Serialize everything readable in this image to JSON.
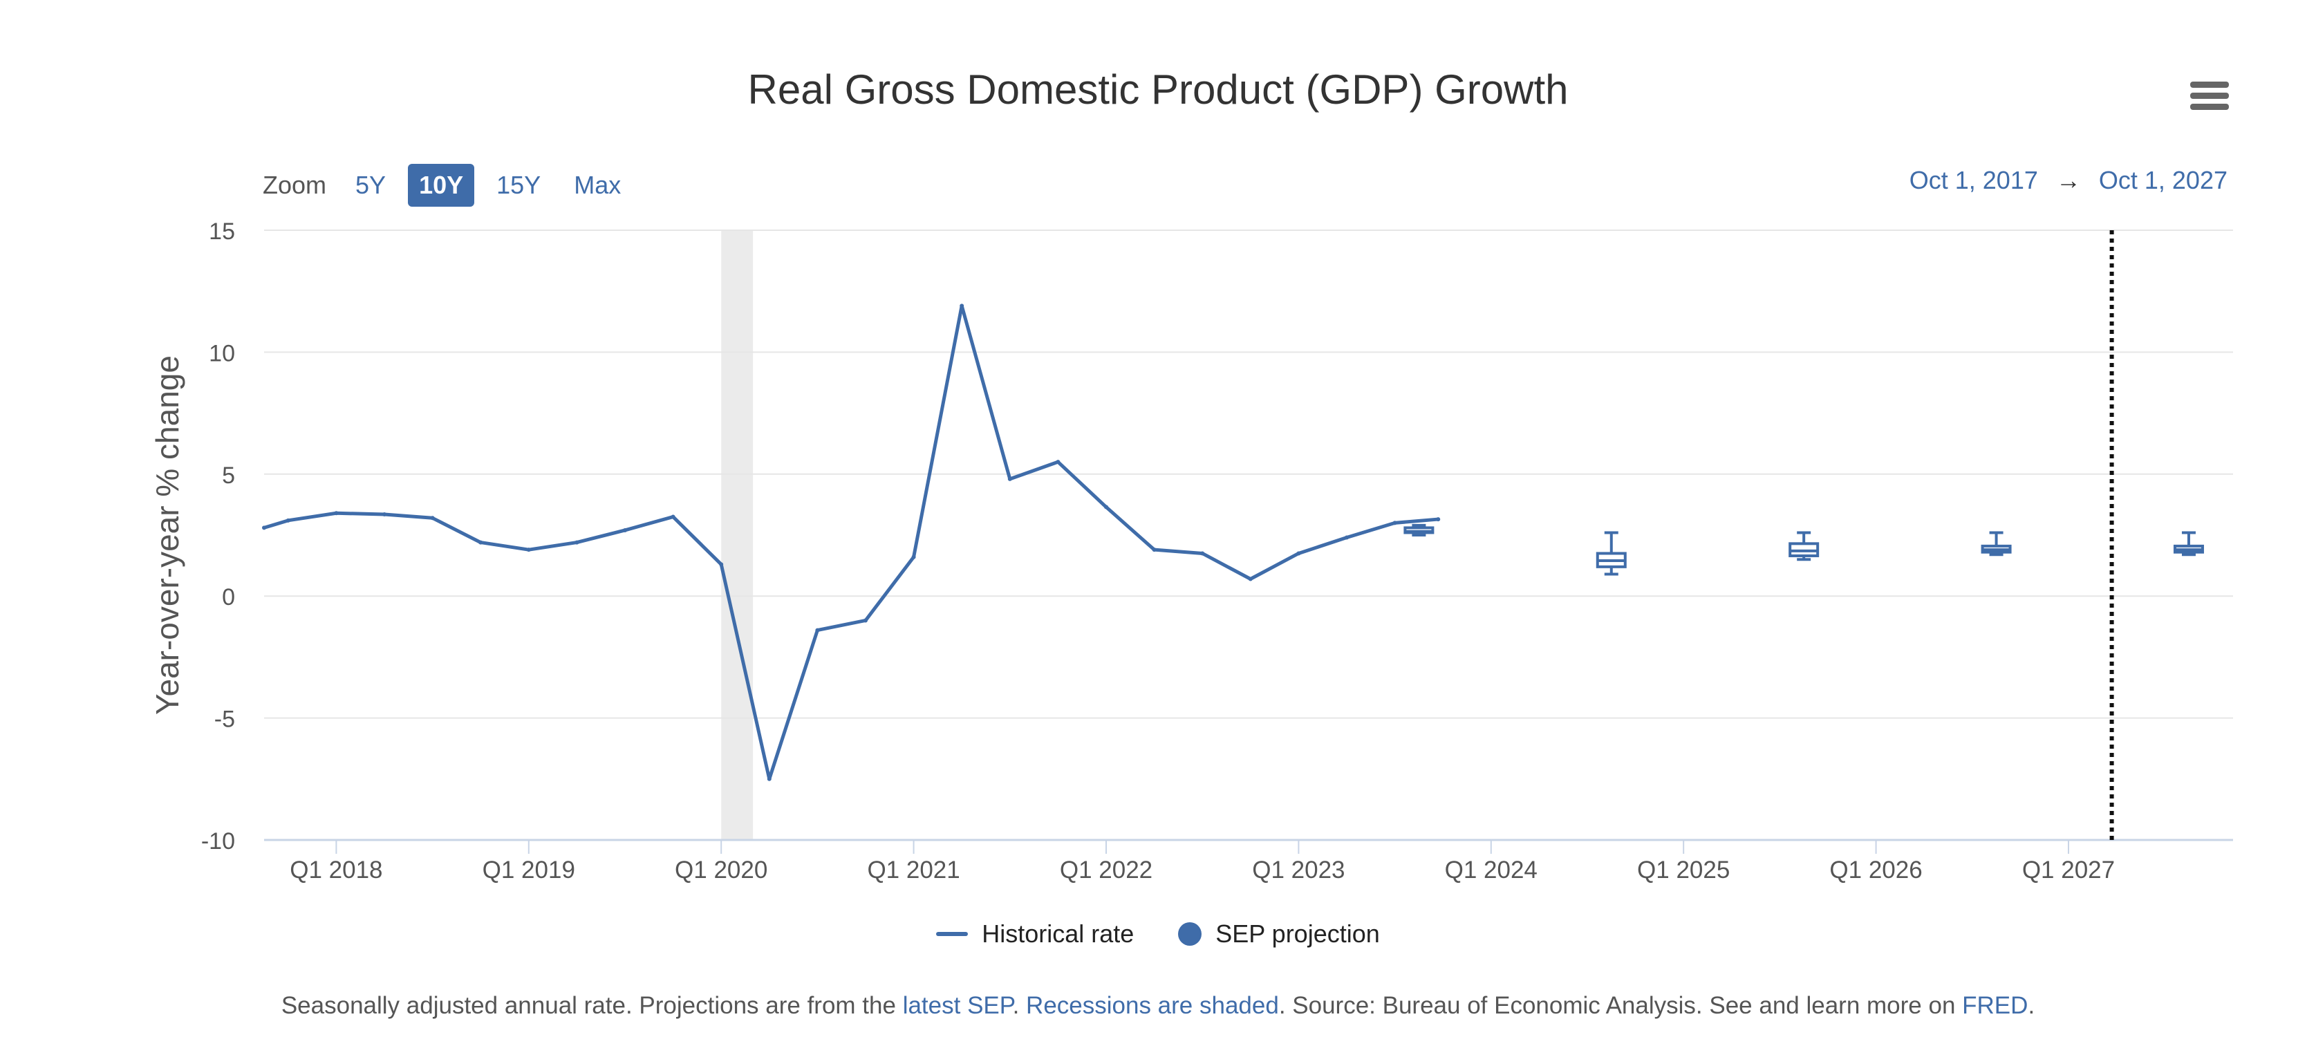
{
  "chart_data": {
    "type": "line",
    "title": "Real Gross Domestic Product (GDP) Growth",
    "ylabel": "Year-over-year % change",
    "xlabel": "",
    "ylim": [
      -10,
      15
    ],
    "yticks": [
      15,
      10,
      5,
      0,
      -5,
      -10
    ],
    "xlim": [
      2017.75,
      2027.98
    ],
    "xticks": [
      {
        "x": 2018.125,
        "label": "Q1 2018"
      },
      {
        "x": 2019.125,
        "label": "Q1 2019"
      },
      {
        "x": 2020.125,
        "label": "Q1 2020"
      },
      {
        "x": 2021.125,
        "label": "Q1 2021"
      },
      {
        "x": 2022.125,
        "label": "Q1 2022"
      },
      {
        "x": 2023.125,
        "label": "Q1 2023"
      },
      {
        "x": 2024.125,
        "label": "Q1 2024"
      },
      {
        "x": 2025.125,
        "label": "Q1 2025"
      },
      {
        "x": 2026.125,
        "label": "Q1 2026"
      },
      {
        "x": 2027.125,
        "label": "Q1 2027"
      }
    ],
    "grid": true,
    "recession": [
      2020.125,
      2020.29
    ],
    "vline_x": 2027.35,
    "series": [
      {
        "name": "Historical rate",
        "x": [
          2017.75,
          2017.875,
          2018.125,
          2018.375,
          2018.625,
          2018.875,
          2019.125,
          2019.375,
          2019.625,
          2019.875,
          2020.125,
          2020.375,
          2020.625,
          2020.875,
          2021.125,
          2021.375,
          2021.625,
          2021.875,
          2022.125,
          2022.375,
          2022.625,
          2022.875,
          2023.125,
          2023.375,
          2023.625,
          2023.85
        ],
        "values": [
          2.8,
          3.1,
          3.4,
          3.35,
          3.2,
          2.2,
          1.9,
          2.2,
          2.7,
          3.25,
          1.3,
          -7.5,
          -1.4,
          -1.0,
          1.6,
          11.9,
          4.8,
          5.5,
          3.65,
          1.9,
          1.75,
          0.7,
          1.75,
          2.4,
          3.0,
          3.15
        ]
      },
      {
        "name": "SEP projection",
        "boxes": [
          {
            "x": 2023.75,
            "min": 2.5,
            "q1": 2.6,
            "median": 2.65,
            "q3": 2.8,
            "max": 2.9
          },
          {
            "x": 2024.75,
            "min": 0.9,
            "q1": 1.2,
            "median": 1.45,
            "q3": 1.75,
            "max": 2.6
          },
          {
            "x": 2025.75,
            "min": 1.5,
            "q1": 1.65,
            "median": 1.85,
            "q3": 2.15,
            "max": 2.6
          },
          {
            "x": 2026.75,
            "min": 1.7,
            "q1": 1.8,
            "median": 1.9,
            "q3": 2.05,
            "max": 2.6
          },
          {
            "x": 2027.75,
            "min": 1.7,
            "q1": 1.8,
            "median": 1.9,
            "q3": 2.05,
            "max": 2.6
          }
        ]
      }
    ]
  },
  "zoom": {
    "label": "Zoom",
    "options": [
      "5Y",
      "10Y",
      "15Y",
      "Max"
    ],
    "active": "10Y"
  },
  "range": {
    "from": "Oct 1, 2017",
    "arrow": "→",
    "to": "Oct 1, 2027"
  },
  "legend": {
    "historical": "Historical rate",
    "projection": "SEP projection"
  },
  "colors": {
    "series": "#3f6ca9",
    "grid": "#e6e6e6",
    "recession": "#ebebeb"
  },
  "footnote": {
    "t1": "Seasonally adjusted annual rate. Projections are from the ",
    "link1": "latest SEP",
    "t2": ". ",
    "link2": "Recessions are shaded",
    "t3": ". Source: Bureau of Economic Analysis. See and learn more on ",
    "link3": "FRED",
    "t4": "."
  }
}
